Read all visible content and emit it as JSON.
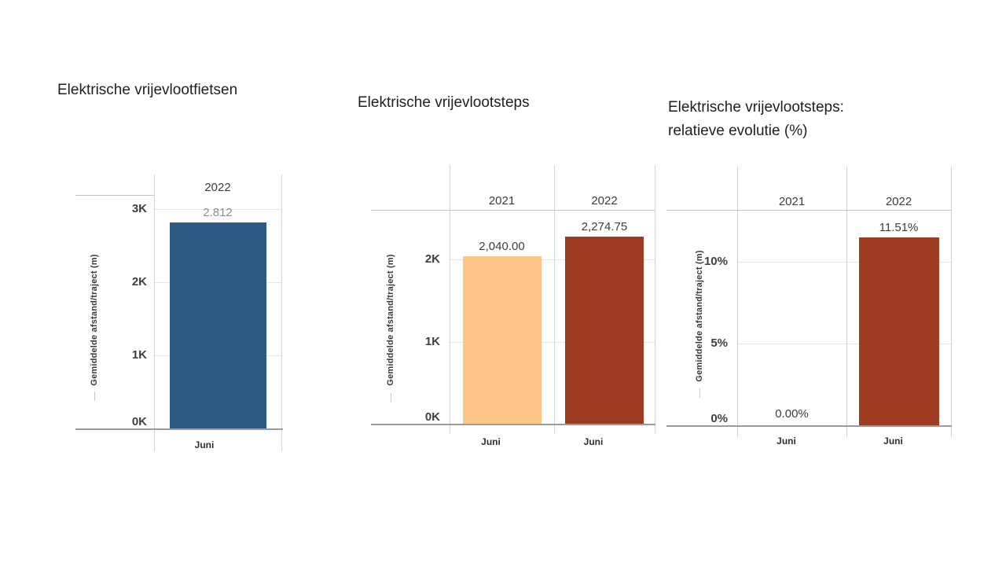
{
  "page": {
    "background": "#ffffff"
  },
  "chart_data": [
    {
      "type": "bar",
      "title": "Elektrische vrijevlootfietsen",
      "ylabel": "Gemiddelde afstand/traject  (m)",
      "xlabel": "",
      "categories": [
        "Juni"
      ],
      "ylim": [
        0,
        3400
      ],
      "grid": "horizontal",
      "legend_position": "none",
      "y_ticks": [
        {
          "label": "0K",
          "value": 0
        },
        {
          "label": "1K",
          "value": 1000
        },
        {
          "label": "2K",
          "value": 2000
        },
        {
          "label": "3K",
          "value": 3000
        }
      ],
      "columns": [
        {
          "year": "2022",
          "category": "Juni",
          "value": 2812,
          "value_label": "2.812",
          "bar_color": "#2d5a85",
          "value_label_color": "#8c8c8c"
        }
      ]
    },
    {
      "type": "bar",
      "title": "Elektrische vrijevlootsteps",
      "ylabel": "Gemiddelde afstand/traject  (m)",
      "xlabel": "",
      "categories": [
        "Juni",
        "Juni"
      ],
      "ylim": [
        0,
        2500
      ],
      "grid": "horizontal",
      "legend_position": "none",
      "y_ticks": [
        {
          "label": "0K",
          "value": 0
        },
        {
          "label": "1K",
          "value": 1000
        },
        {
          "label": "2K",
          "value": 2000
        }
      ],
      "columns": [
        {
          "year": "2021",
          "category": "Juni",
          "value": 2040,
          "value_label": "2,040.00",
          "bar_color": "#fdc687",
          "value_label_color": "#3d3d3d"
        },
        {
          "year": "2022",
          "category": "Juni",
          "value": 2274.75,
          "value_label": "2,274.75",
          "bar_color": "#9e3c22",
          "value_label_color": "#3d3d3d"
        }
      ]
    },
    {
      "type": "bar",
      "title": "Elektrische vrijevlootsteps:\nrelatieve evolutie (%)",
      "ylabel": "Gemiddelde afstand/traject  (m)",
      "xlabel": "",
      "categories": [
        "Juni",
        "Juni"
      ],
      "ylim": [
        0,
        12.5
      ],
      "grid": "horizontal",
      "legend_position": "none",
      "y_ticks": [
        {
          "label": "0%",
          "value": 0
        },
        {
          "label": "5%",
          "value": 5
        },
        {
          "label": "10%",
          "value": 10
        }
      ],
      "columns": [
        {
          "year": "2021",
          "category": "Juni",
          "value": 0,
          "value_label": "0.00%",
          "bar_color": "#9e3c22",
          "value_label_color": "#3d3d3d"
        },
        {
          "year": "2022",
          "category": "Juni",
          "value": 11.51,
          "value_label": "11.51%",
          "bar_color": "#9e3c22",
          "value_label_color": "#3d3d3d"
        }
      ]
    }
  ]
}
